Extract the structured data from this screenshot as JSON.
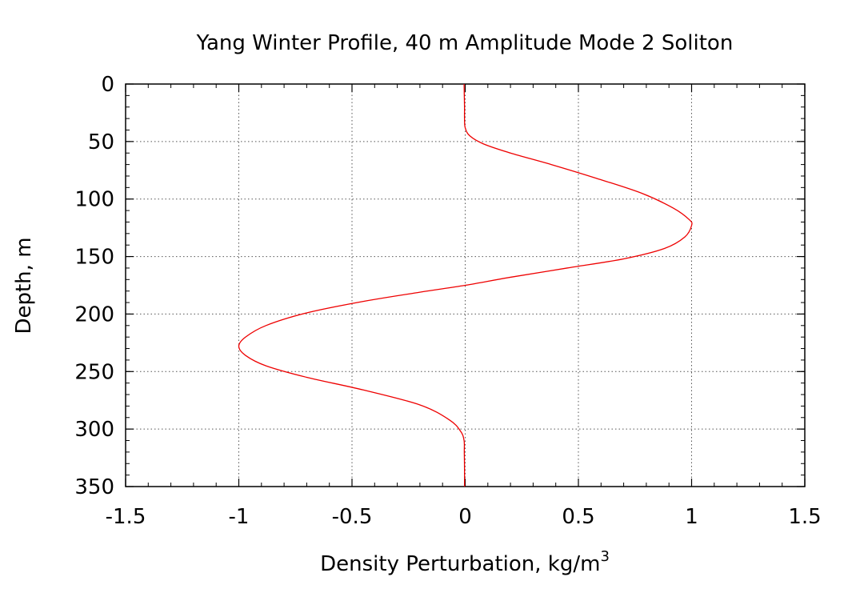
{
  "chart_data": {
    "type": "line",
    "title": "Yang Winter Profile, 40 m Amplitude Mode 2 Soliton",
    "xlabel": "Density Perturbation, kg/m",
    "xlabel_superscript": "3",
    "ylabel": "Depth, m",
    "xlim": [
      -1.5,
      1.5
    ],
    "ylim": [
      0,
      350
    ],
    "y_inverted": true,
    "grid": true,
    "x_ticks": [
      -1.5,
      -1,
      -0.5,
      0,
      0.5,
      1,
      1.5
    ],
    "x_tick_labels": [
      "-1.5",
      "-1",
      "-0.5",
      "0",
      "0.5",
      "1",
      "1.5"
    ],
    "y_ticks": [
      0,
      50,
      100,
      150,
      200,
      250,
      300,
      350
    ],
    "y_tick_labels": [
      "0",
      "50",
      "100",
      "150",
      "200",
      "250",
      "300",
      "350"
    ],
    "series": [
      {
        "color": "#ee0000",
        "points": [
          [
            -0.005,
            0
          ],
          [
            -0.004,
            10
          ],
          [
            -0.003,
            20
          ],
          [
            -0.003,
            30
          ],
          [
            0.0,
            38
          ],
          [
            0.02,
            45
          ],
          [
            0.08,
            52
          ],
          [
            0.2,
            60
          ],
          [
            0.38,
            70
          ],
          [
            0.58,
            82
          ],
          [
            0.78,
            95
          ],
          [
            0.92,
            108
          ],
          [
            0.99,
            118
          ],
          [
            1.0,
            123
          ],
          [
            0.97,
            133
          ],
          [
            0.88,
            143
          ],
          [
            0.7,
            152
          ],
          [
            0.45,
            160
          ],
          [
            0.2,
            168
          ],
          [
            0.0,
            175
          ],
          [
            -0.2,
            181
          ],
          [
            -0.45,
            189
          ],
          [
            -0.7,
            199
          ],
          [
            -0.88,
            210
          ],
          [
            -0.97,
            220
          ],
          [
            -1.0,
            228
          ],
          [
            -0.97,
            236
          ],
          [
            -0.88,
            245
          ],
          [
            -0.7,
            255
          ],
          [
            -0.45,
            266
          ],
          [
            -0.2,
            279
          ],
          [
            -0.07,
            292
          ],
          [
            -0.02,
            302
          ],
          [
            -0.005,
            310
          ],
          [
            -0.004,
            320
          ],
          [
            -0.003,
            335
          ],
          [
            -0.003,
            350
          ]
        ]
      }
    ]
  }
}
